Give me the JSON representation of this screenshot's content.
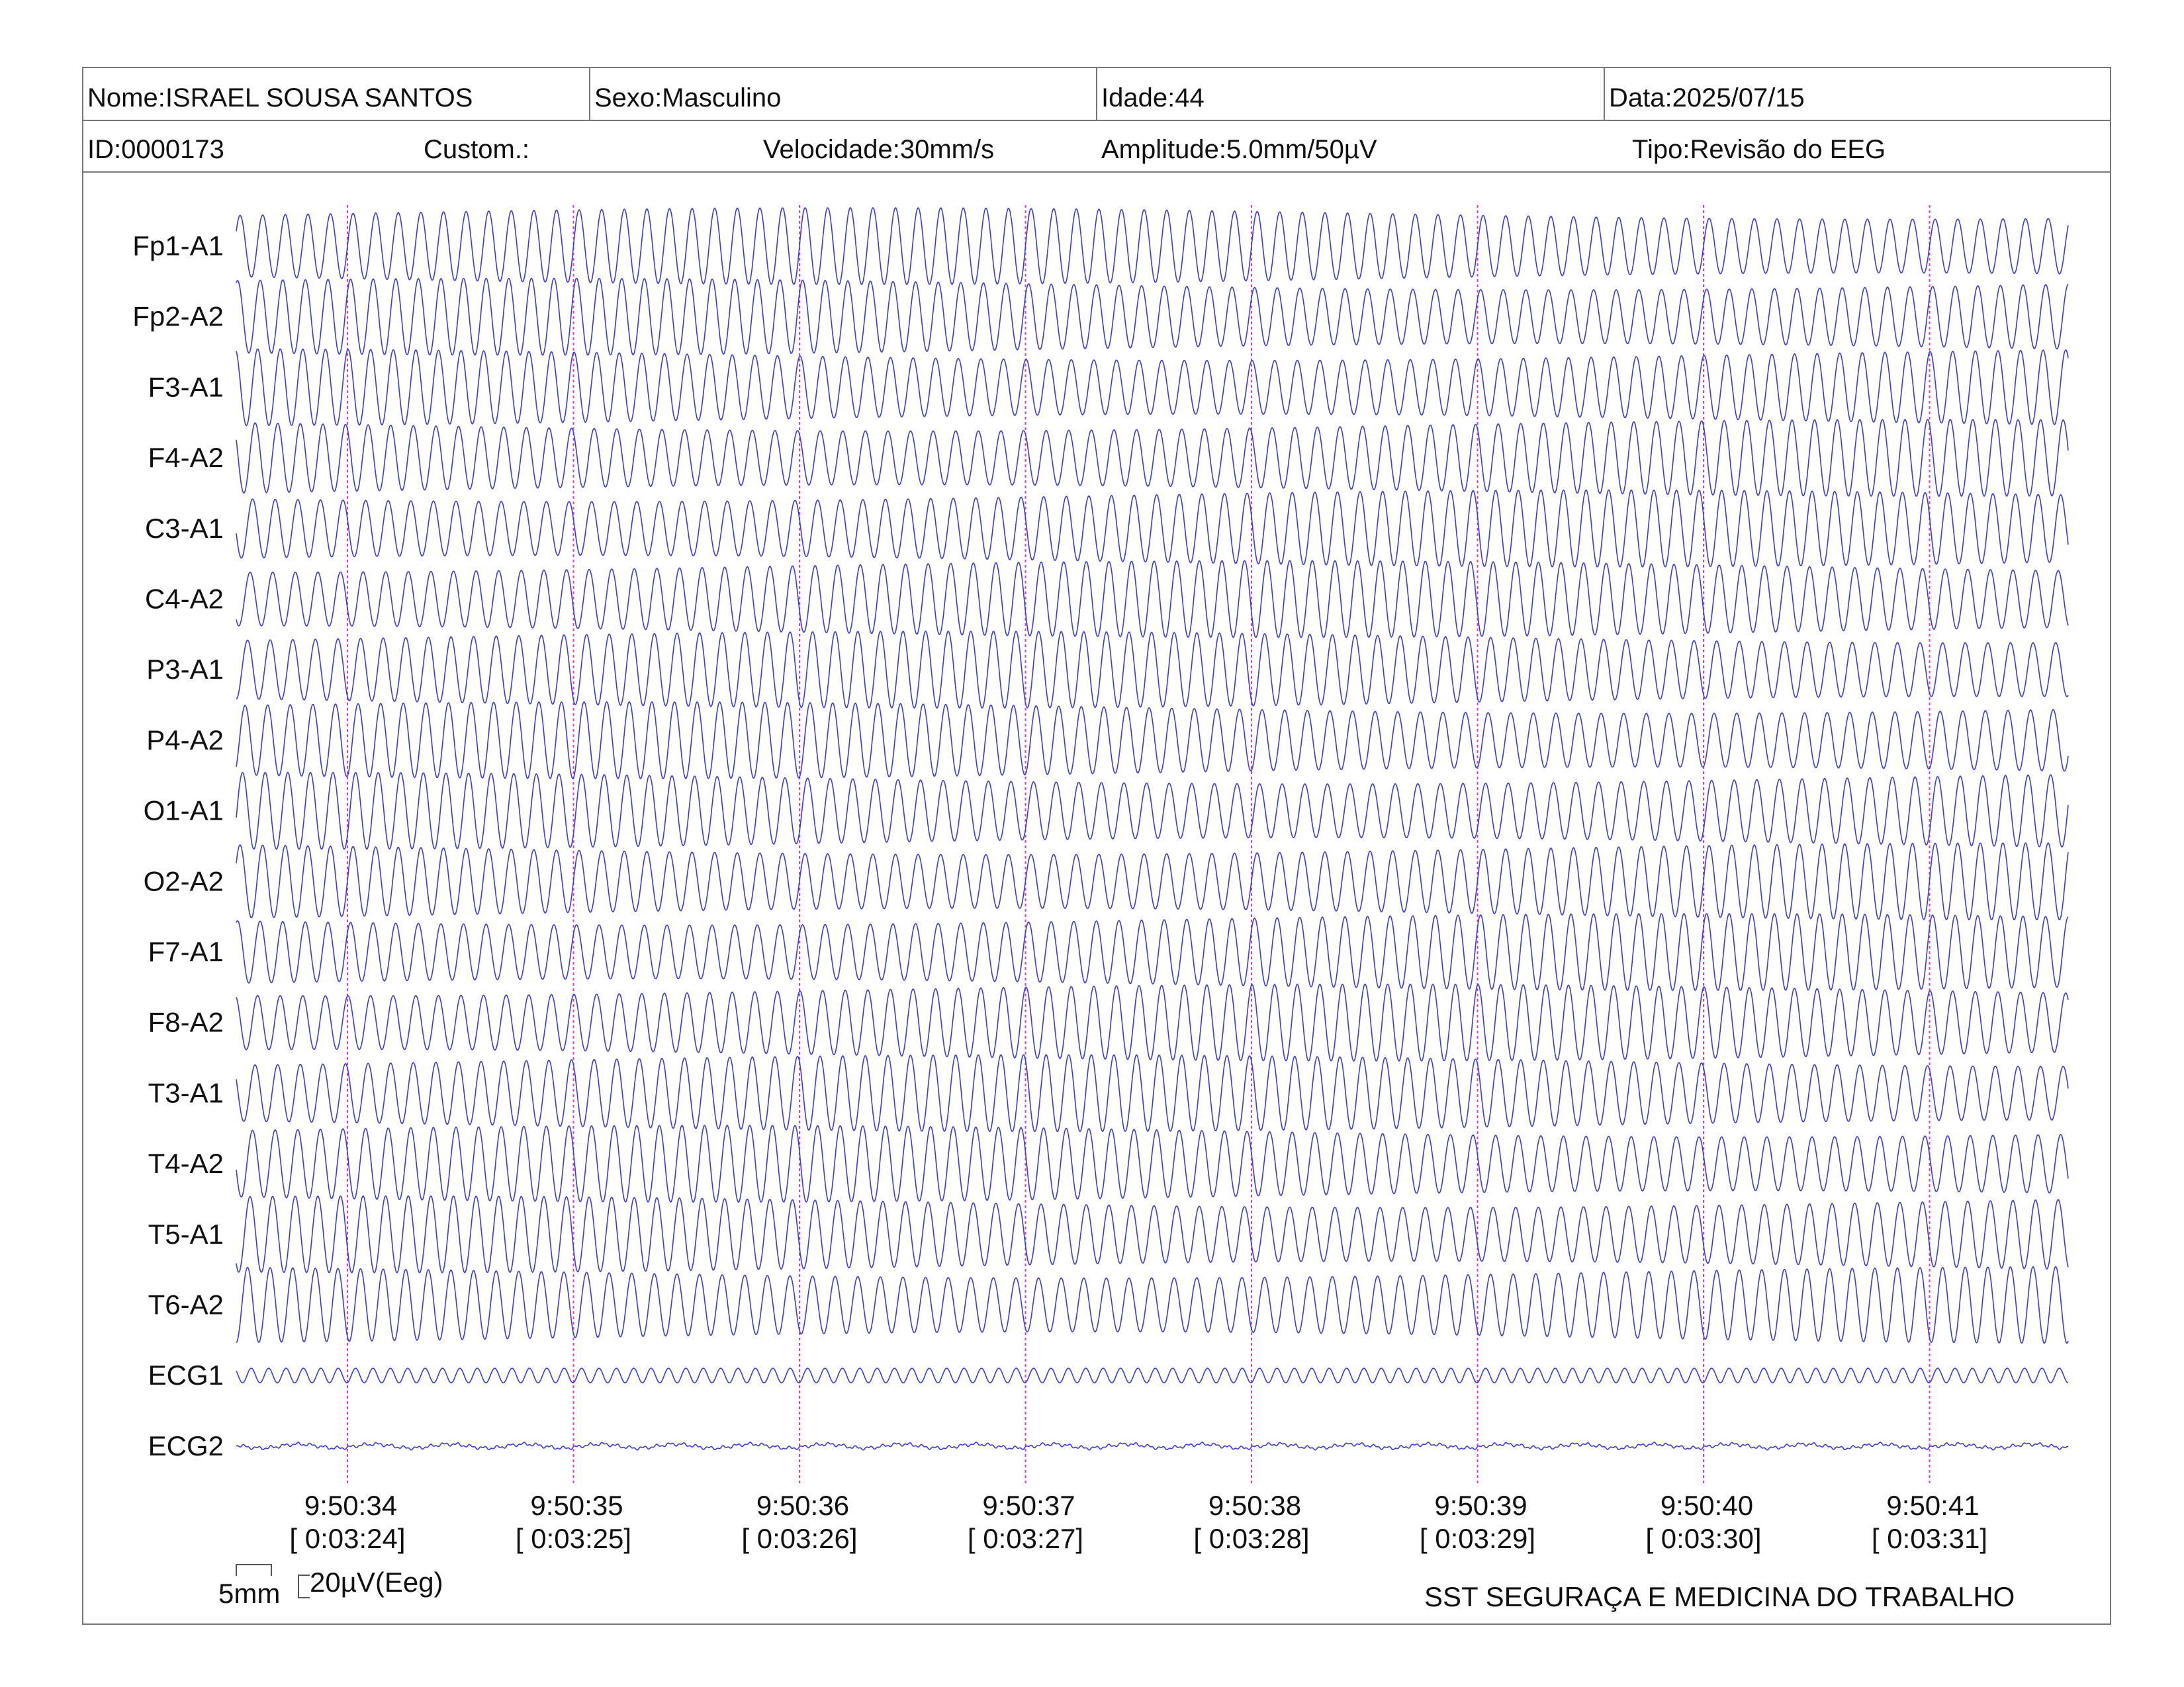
{
  "header": {
    "nome": "Nome:ISRAEL SOUSA SANTOS",
    "sexo": "Sexo:Masculino",
    "idade": "Idade:44",
    "data": "Data:2025/07/15",
    "id": "ID:0000173",
    "custom": "Custom.:",
    "velocidade": "Velocidade:30mm/s",
    "amplitude": "Amplitude:5.0mm/50µV",
    "tipo": "Tipo:Revisão do EEG"
  },
  "chart_data": {
    "type": "line",
    "channels": [
      "Fp1-A1",
      "Fp2-A2",
      "F3-A1",
      "F4-A2",
      "C3-A1",
      "C4-A2",
      "P3-A1",
      "P4-A2",
      "O1-A1",
      "O2-A2",
      "F7-A1",
      "F8-A2",
      "T3-A1",
      "T4-A2",
      "T5-A1",
      "T6-A2",
      "ECG1",
      "ECG2"
    ],
    "time_labels": [
      {
        "time": "9:50:34",
        "elapsed": "[ 0:03:24]"
      },
      {
        "time": "9:50:35",
        "elapsed": "[ 0:03:25]"
      },
      {
        "time": "9:50:36",
        "elapsed": "[ 0:03:26]"
      },
      {
        "time": "9:50:37",
        "elapsed": "[ 0:03:27]"
      },
      {
        "time": "9:50:38",
        "elapsed": "[ 0:03:28]"
      },
      {
        "time": "9:50:39",
        "elapsed": "[ 0:03:29]"
      },
      {
        "time": "9:50:40",
        "elapsed": "[ 0:03:30]"
      },
      {
        "time": "9:50:41",
        "elapsed": "[ 0:03:31]"
      }
    ],
    "eeg_frequency_hz": 10,
    "ecg1_frequency_hz": 13,
    "ecg2_frequency_hz": 3,
    "trace_color": "#3a3ae0",
    "marker_color": "#d040d0"
  },
  "footer": {
    "scale_time": "5mm",
    "scale_amp": "20µV(Eeg)",
    "company": "SST SEGURAÇA E MEDICINA DO TRABALHO"
  }
}
